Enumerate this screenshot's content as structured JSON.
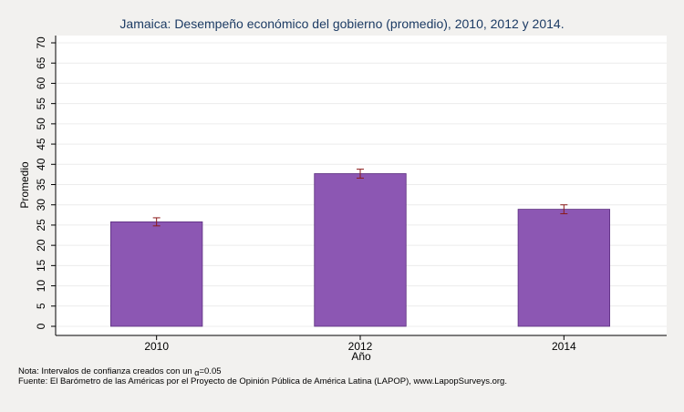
{
  "chart_data": {
    "type": "bar",
    "title": "Jamaica: Desempeño económico del gobierno (promedio), 2010, 2012 y 2014.",
    "xlabel": "Año",
    "ylabel": "Promedio",
    "categories": [
      "2010",
      "2012",
      "2014"
    ],
    "values": [
      25.8,
      37.7,
      28.9
    ],
    "error_bars": [
      {
        "low": 24.8,
        "high": 26.8
      },
      {
        "low": 36.6,
        "high": 38.8
      },
      {
        "low": 27.8,
        "high": 30.0
      }
    ],
    "ylim": [
      0,
      70
    ],
    "yticks": [
      "0",
      "5",
      "10",
      "15",
      "20",
      "25",
      "30",
      "35",
      "40",
      "45",
      "50",
      "55",
      "60",
      "65",
      "70"
    ],
    "grid": true,
    "bar_color": "#8c57b3",
    "error_color": "#8b1a1a"
  },
  "notes": {
    "note_prefix": "Nota: Intervalos de confianza creados con un ",
    "alpha_symbol": "α",
    "alpha_value": "=0.05",
    "source": "Fuente: El Barómetro de las Américas por el Proyecto de Opinión Pública de América Latina (LAPOP), www.LapopSurveys.org."
  }
}
